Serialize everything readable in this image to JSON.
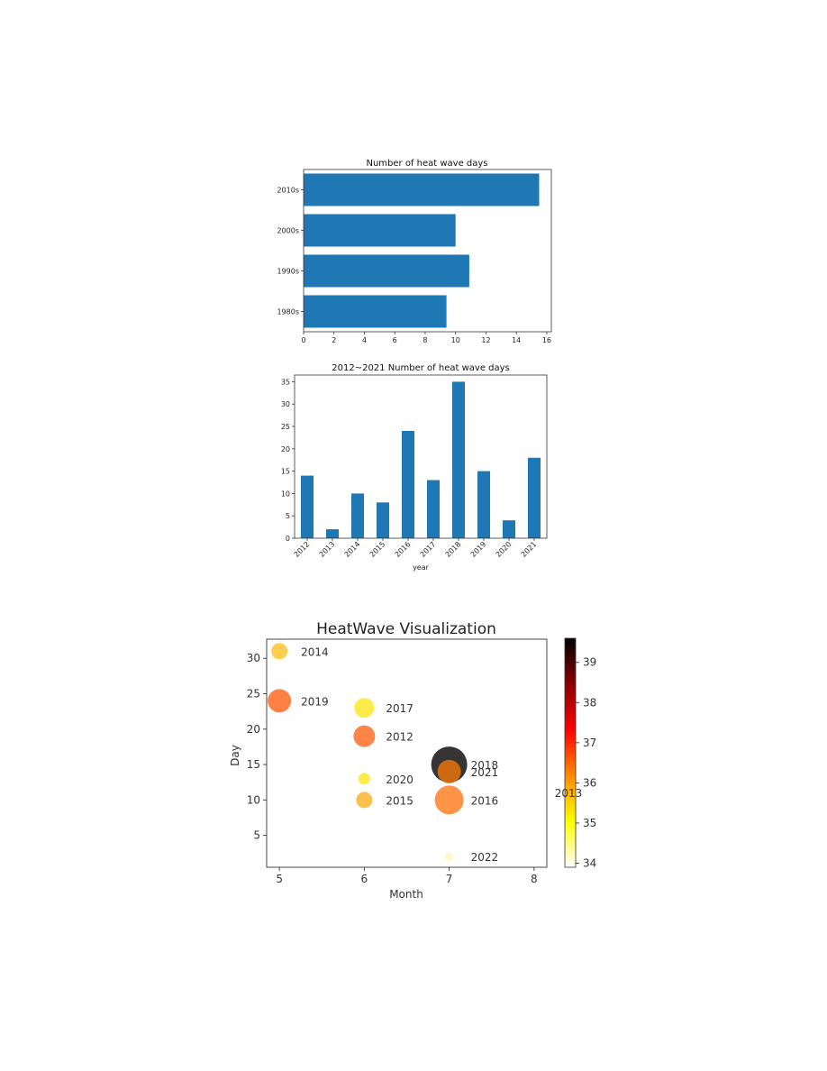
{
  "chart_data": [
    {
      "type": "bar",
      "orientation": "horizontal",
      "title": "Number of heat wave days",
      "categories": [
        "1980s",
        "1990s",
        "2000s",
        "2010s"
      ],
      "values": [
        9.4,
        10.9,
        10.0,
        15.5
      ],
      "xlim": [
        0,
        16.3
      ],
      "xticks": [
        "0",
        "2",
        "4",
        "6",
        "8",
        "10",
        "12",
        "14",
        "16"
      ],
      "color": "#1f77b4",
      "grid": false
    },
    {
      "type": "bar",
      "title": "2012~2021 Number of heat wave days",
      "xlabel": "year",
      "categories": [
        "2012",
        "2013",
        "2014",
        "2015",
        "2016",
        "2017",
        "2018",
        "2019",
        "2020",
        "2021"
      ],
      "values": [
        14,
        2,
        10,
        8,
        24,
        13,
        35,
        15,
        4,
        18
      ],
      "ylim": [
        0,
        36.5
      ],
      "yticks": [
        "0",
        "5",
        "10",
        "15",
        "20",
        "25",
        "30",
        "35"
      ],
      "color": "#1f77b4",
      "grid": false
    },
    {
      "type": "scatter",
      "title": "HeatWave Visualization",
      "xlabel": "Month",
      "ylabel": "Day",
      "xlim": [
        4.85,
        8.15
      ],
      "ylim": [
        0.5,
        32.7
      ],
      "xticks": [
        "5",
        "6",
        "7",
        "8"
      ],
      "yticks": [
        "5",
        "10",
        "15",
        "20",
        "25",
        "30"
      ],
      "points": [
        {
          "label": "2014",
          "x": 5,
          "y": 31,
          "size": 18,
          "color": "#fbc42f"
        },
        {
          "label": "2019",
          "x": 5,
          "y": 24,
          "size": 26,
          "color": "#fd6a24"
        },
        {
          "label": "2017",
          "x": 6,
          "y": 23,
          "size": 22,
          "color": "#fbe92b"
        },
        {
          "label": "2012",
          "x": 6,
          "y": 19,
          "size": 24,
          "color": "#fd7028"
        },
        {
          "label": "2020",
          "x": 6,
          "y": 13,
          "size": 13,
          "color": "#fde62c"
        },
        {
          "label": "2015",
          "x": 6,
          "y": 10,
          "size": 18,
          "color": "#fcb52f"
        },
        {
          "label": "2018",
          "x": 7,
          "y": 15,
          "size": 40,
          "color": "#141010"
        },
        {
          "label": "2021",
          "x": 7,
          "y": 14,
          "size": 26,
          "color": "#e6730c"
        },
        {
          "label": "2016",
          "x": 7,
          "y": 10,
          "size": 32,
          "color": "#fd8128"
        },
        {
          "label": "2022",
          "x": 7,
          "y": 2,
          "size": 10,
          "color": "#fff7c8"
        }
      ],
      "colorbar": {
        "range": [
          33.9,
          39.6
        ],
        "ticks": [
          "34",
          "35",
          "36",
          "37",
          "38",
          "39"
        ],
        "label": "2013",
        "colormap": [
          "#ffffff",
          "#ffff00",
          "#ff8c00",
          "#ff0000",
          "#8b0000",
          "#000000"
        ]
      }
    }
  ]
}
